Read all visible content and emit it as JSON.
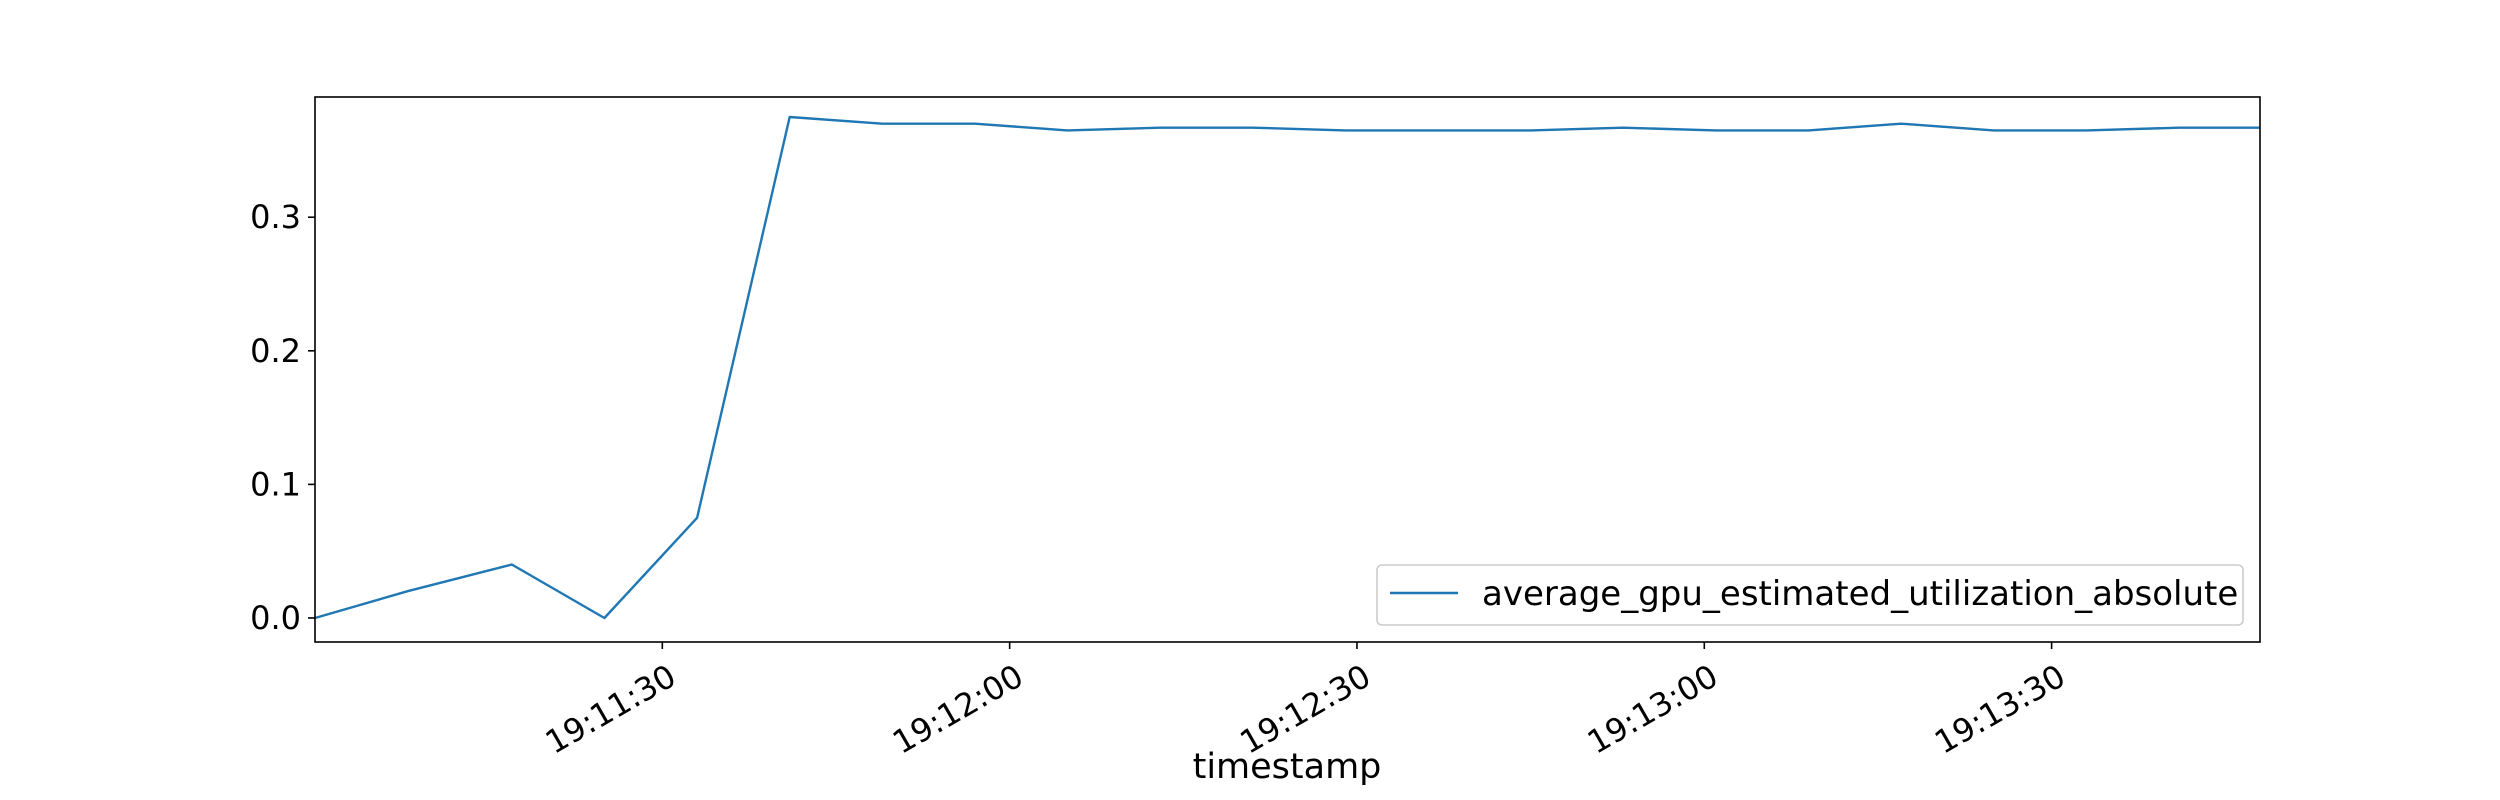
{
  "chart_data": {
    "type": "line",
    "title": "",
    "xlabel": "timestamp",
    "ylabel": "",
    "x_tick_labels": [
      "19:11:30",
      "19:12:00",
      "19:12:30",
      "19:13:00",
      "19:13:30"
    ],
    "y_tick_labels": [
      "0.0",
      "0.1",
      "0.2",
      "0.3"
    ],
    "y_ticks": [
      0.0,
      0.1,
      0.2,
      0.3
    ],
    "xlim": [
      "19:11:00",
      "19:13:48"
    ],
    "ylim": [
      -0.018,
      0.39
    ],
    "grid": false,
    "legend_position": "lower-right",
    "series": [
      {
        "name": "average_gpu_estimated_utilization_absolute",
        "color": "#1f77b4",
        "x": [
          "19:11:00",
          "19:11:08",
          "19:11:17",
          "19:11:25",
          "19:11:33",
          "19:11:41",
          "19:11:49",
          "19:11:57",
          "19:12:05",
          "19:12:13",
          "19:12:21",
          "19:12:29",
          "19:12:37",
          "19:12:45",
          "19:12:53",
          "19:13:01",
          "19:13:09",
          "19:13:17",
          "19:13:25",
          "19:13:33",
          "19:13:41",
          "19:13:48"
        ],
        "values": [
          0.0,
          0.02,
          0.04,
          0.0,
          0.075,
          0.375,
          0.37,
          0.37,
          0.365,
          0.367,
          0.367,
          0.365,
          0.365,
          0.365,
          0.367,
          0.365,
          0.365,
          0.37,
          0.365,
          0.365,
          0.367,
          0.367
        ]
      }
    ]
  }
}
